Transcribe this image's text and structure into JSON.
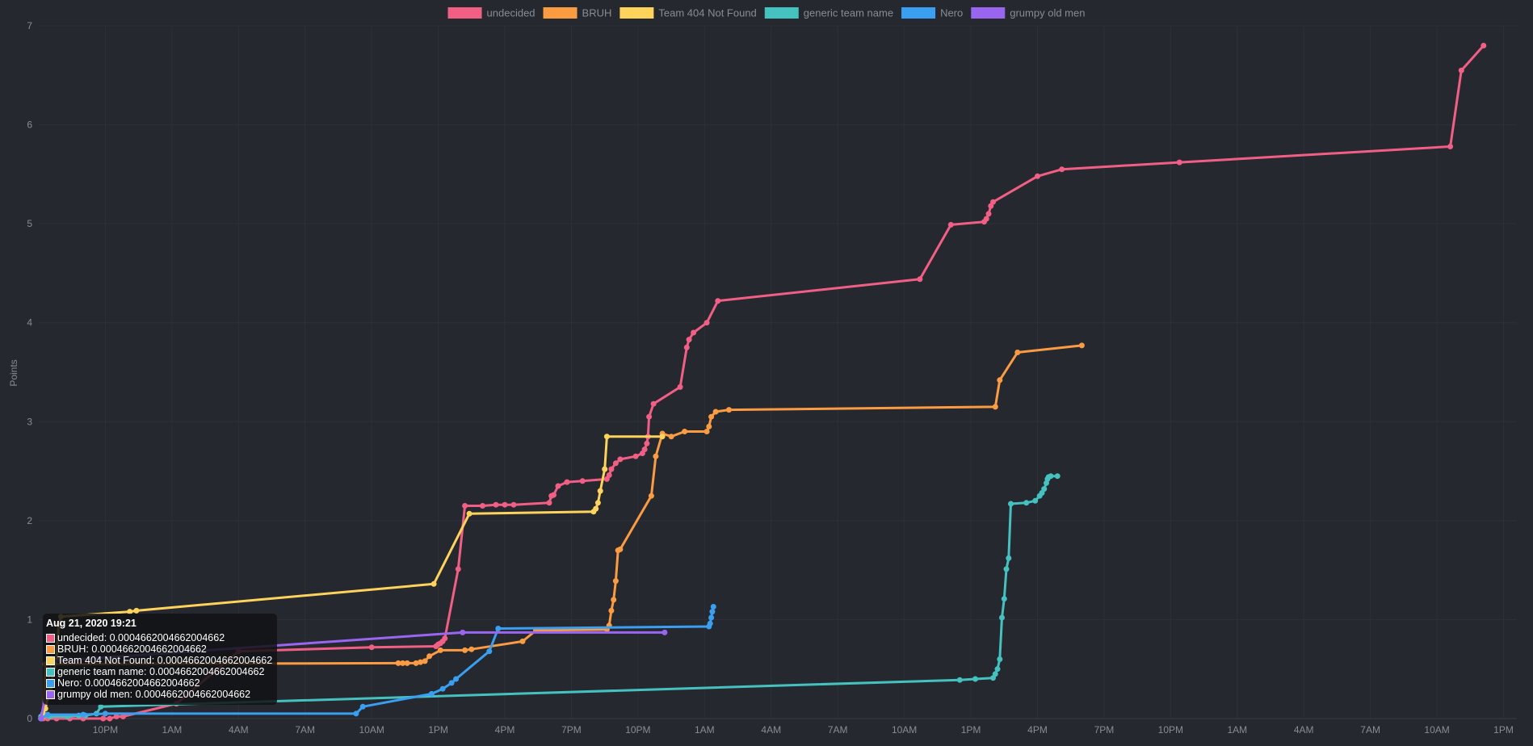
{
  "chart_data": {
    "type": "line",
    "title": "",
    "xlabel": "",
    "ylabel": "Points",
    "ylim": [
      0,
      7
    ],
    "yticks": [
      "0",
      "1",
      "2",
      "3",
      "4",
      "5",
      "6",
      "7"
    ],
    "xticks": [
      "10PM",
      "1AM",
      "4AM",
      "7AM",
      "10AM",
      "1PM",
      "4PM",
      "7PM",
      "10PM",
      "1AM",
      "4AM",
      "7AM",
      "10AM",
      "1PM",
      "4PM",
      "7PM",
      "10PM",
      "1AM",
      "4AM",
      "7AM",
      "10AM",
      "1PM"
    ],
    "x_unit": "hour",
    "x_start": "Aug 21, 2020 19:00",
    "x_range": [
      0,
      66.6
    ],
    "grid": true,
    "legend_position": "top",
    "series": [
      {
        "name": "undecided",
        "color": "#f25f85",
        "x": [
          0.1,
          0.2,
          0.4,
          0.8,
          1.4,
          2.0,
          2.9,
          3.2,
          3.5,
          3.8,
          6.2,
          9.0,
          15.0,
          17.9,
          18.0,
          18.1,
          18.2,
          18.3,
          18.9,
          19.2,
          20.0,
          20.6,
          21.0,
          21.4,
          23.0,
          23.1,
          23.2,
          23.4,
          23.8,
          24.5,
          25.6,
          25.7,
          25.8,
          26.0,
          26.2,
          26.9,
          27.2,
          27.3,
          27.4,
          27.45,
          27.5,
          27.7,
          28.9,
          29.2,
          29.3,
          29.5,
          30.1,
          30.6,
          39.7,
          41.1,
          42.6,
          42.7,
          42.8,
          42.9,
          43.0,
          45.0,
          46.1,
          51.4,
          63.6,
          64.1,
          65.1
        ],
        "y": [
          0.0,
          0.0,
          0.0,
          0.0,
          0.0,
          0.0,
          0.0,
          0.0,
          0.02,
          0.02,
          0.15,
          0.68,
          0.72,
          0.73,
          0.75,
          0.76,
          0.78,
          0.81,
          1.51,
          2.15,
          2.15,
          2.16,
          2.16,
          2.16,
          2.18,
          2.25,
          2.26,
          2.35,
          2.39,
          2.4,
          2.42,
          2.46,
          2.52,
          2.58,
          2.62,
          2.65,
          2.68,
          2.72,
          2.78,
          2.85,
          3.05,
          3.18,
          3.35,
          3.75,
          3.83,
          3.9,
          4.0,
          4.22,
          4.44,
          4.99,
          5.02,
          5.05,
          5.1,
          5.18,
          5.22,
          5.48,
          5.55,
          5.62,
          5.78,
          6.55,
          6.8
        ]
      },
      {
        "name": "BRUH",
        "color": "#fb9b42",
        "x": [
          0.2,
          0.3,
          16.2,
          16.4,
          16.6,
          17.0,
          17.2,
          17.4,
          17.6,
          18.1,
          19.2,
          19.5,
          21.8,
          22.4,
          25.6,
          25.7,
          25.8,
          25.9,
          26.0,
          26.1,
          26.2,
          27.6,
          27.8,
          28.1,
          28.5,
          29.1,
          30.1,
          30.2,
          30.3,
          30.5,
          31.1,
          43.1,
          43.3,
          44.1,
          47.0
        ],
        "y": [
          0.02,
          0.55,
          0.56,
          0.56,
          0.56,
          0.56,
          0.57,
          0.58,
          0.63,
          0.69,
          0.69,
          0.7,
          0.78,
          0.89,
          0.9,
          0.94,
          1.09,
          1.2,
          1.39,
          1.7,
          1.71,
          2.25,
          2.65,
          2.88,
          2.85,
          2.9,
          2.9,
          2.95,
          3.05,
          3.1,
          3.12,
          3.15,
          3.42,
          3.7,
          3.77
        ]
      },
      {
        "name": "Team 404 Not Found",
        "color": "#fdd35b",
        "x": [
          0.1,
          0.2,
          0.3,
          0.5,
          0.8,
          0.9,
          1.0,
          4.1,
          4.4,
          17.8,
          19.4,
          25.0,
          25.1,
          25.2,
          25.3,
          25.5,
          25.6,
          28.1
        ],
        "y": [
          0.0,
          0.05,
          0.1,
          0.3,
          0.6,
          0.95,
          1.03,
          1.08,
          1.09,
          1.36,
          2.07,
          2.09,
          2.12,
          2.18,
          2.3,
          2.52,
          2.85,
          2.85
        ]
      },
      {
        "name": "generic team name",
        "color": "#45c1c0",
        "x": [
          0.1,
          0.5,
          1.3,
          1.8,
          2.1,
          2.6,
          2.8,
          41.5,
          42.2,
          43.0,
          43.1,
          43.2,
          43.3,
          43.4,
          43.5,
          43.6,
          43.7,
          43.8,
          44.5,
          44.9,
          45.1,
          45.2,
          45.3,
          45.4,
          45.45,
          45.5,
          45.6,
          45.9
        ],
        "y": [
          0.02,
          0.02,
          0.02,
          0.03,
          0.03,
          0.05,
          0.12,
          0.39,
          0.4,
          0.41,
          0.45,
          0.5,
          0.6,
          1.02,
          1.21,
          1.51,
          1.62,
          2.17,
          2.18,
          2.2,
          2.25,
          2.28,
          2.32,
          2.38,
          2.42,
          2.44,
          2.45,
          2.45
        ]
      },
      {
        "name": "Nero",
        "color": "#3a9ff0",
        "x": [
          0.1,
          0.4,
          2.0,
          3.0,
          14.3,
          14.6,
          17.7,
          18.2,
          18.6,
          18.8,
          20.3,
          20.7,
          30.2,
          30.25,
          30.3,
          30.35,
          30.4
        ],
        "y": [
          0.0,
          0.04,
          0.04,
          0.05,
          0.05,
          0.12,
          0.25,
          0.3,
          0.36,
          0.4,
          0.68,
          0.91,
          0.93,
          0.96,
          1.02,
          1.08,
          1.13
        ]
      },
      {
        "name": "grumpy old men",
        "color": "#9a66f0",
        "x": [
          0.1,
          0.6,
          19.1,
          28.2
        ],
        "y": [
          0.0,
          0.58,
          0.87,
          0.87
        ]
      }
    ]
  },
  "tooltip": {
    "title": "Aug 21, 2020 19:21",
    "rows": [
      {
        "text": "undecided: 0.0004662004662004662",
        "color": "#f25f85"
      },
      {
        "text": "BRUH: 0.0004662004662004662",
        "color": "#fb9b42"
      },
      {
        "text": "Team 404 Not Found: 0.0004662004662004662",
        "color": "#fdd35b"
      },
      {
        "text": "generic team name: 0.0004662004662004662",
        "color": "#45c1c0"
      },
      {
        "text": "Nero: 0.0004662004662004662",
        "color": "#3a9ff0"
      },
      {
        "text": "grumpy old men: 0.0004662004662004662",
        "color": "#9a66f0"
      }
    ]
  }
}
